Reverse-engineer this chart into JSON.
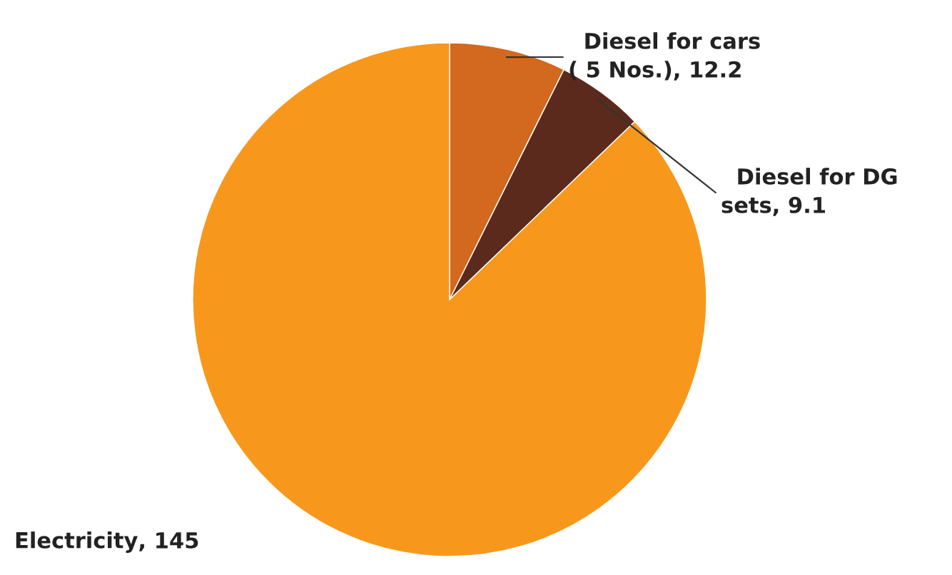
{
  "chart_data": {
    "type": "pie",
    "categories": [
      "Diesel for cars\n( 5 Nos.)",
      "Diesel for DG\nsets",
      "Electricity"
    ],
    "values": [
      12.2,
      9.1,
      145
    ],
    "colors": [
      "#d2691e",
      "#5c2a1c",
      "#f7981d"
    ],
    "value_labels": [
      ", 12.2",
      ", 9.1",
      ", 145"
    ],
    "legend": false
  }
}
